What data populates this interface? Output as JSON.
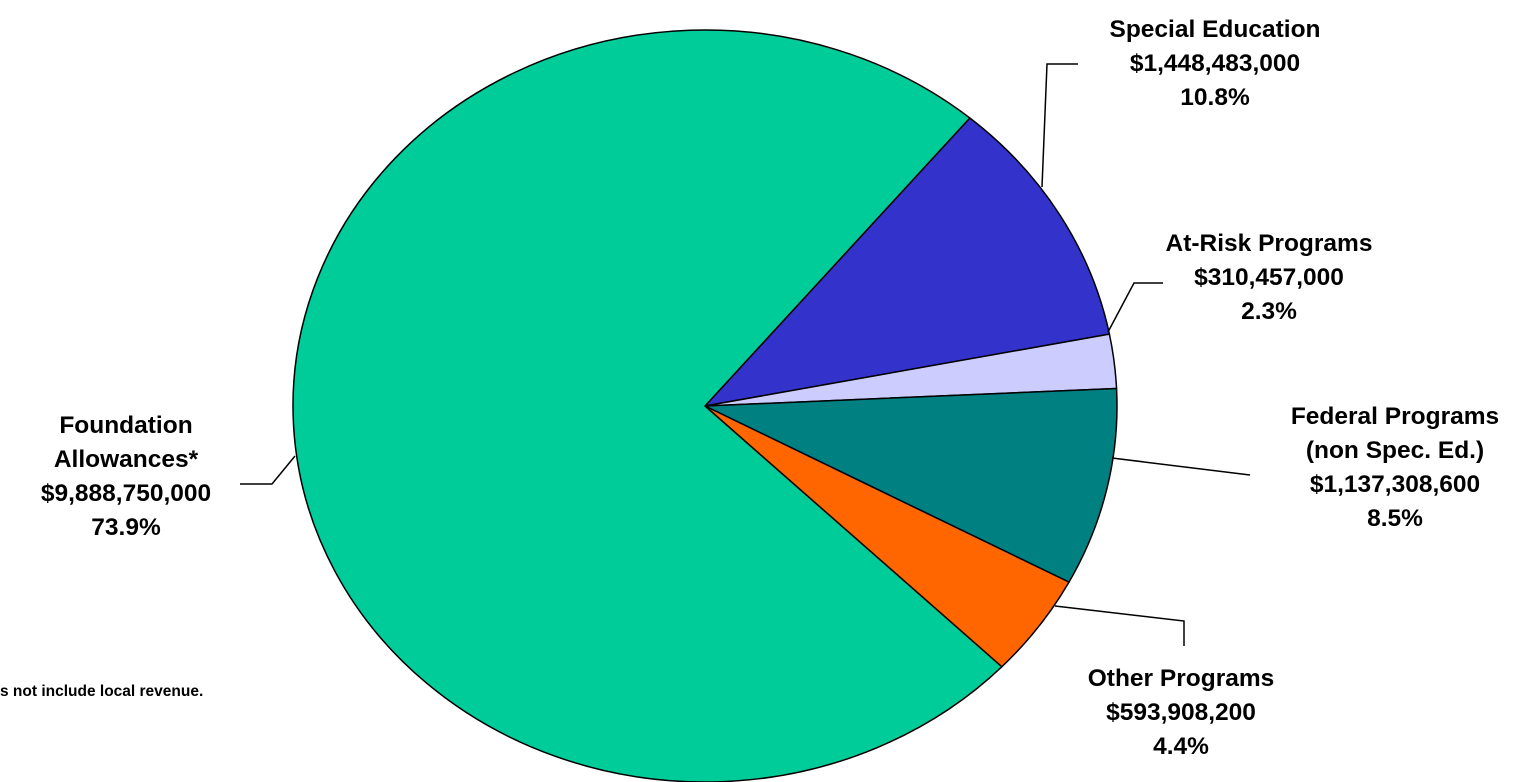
{
  "chart_data": {
    "type": "pie",
    "slices": [
      {
        "name": "Foundation Allowances*",
        "name_lines": [
          "Foundation",
          "Allowances*"
        ],
        "value": 9888750000,
        "value_label": "$9,888,750,000",
        "percent_label": "73.9%",
        "percent": 73.9,
        "color": "#00CC99"
      },
      {
        "name": "Special Education",
        "name_lines": [
          "Special Education"
        ],
        "value": 1448483000,
        "value_label": "$1,448,483,000",
        "percent_label": "10.8%",
        "percent": 10.8,
        "color": "#3333CC"
      },
      {
        "name": "At-Risk Programs",
        "name_lines": [
          "At-Risk Programs"
        ],
        "value": 310457000,
        "value_label": "$310,457,000",
        "percent_label": "2.3%",
        "percent": 2.3,
        "color": "#CCCCFF"
      },
      {
        "name": "Federal Programs (non Spec. Ed.)",
        "name_lines": [
          "Federal Programs",
          "(non Spec. Ed.)"
        ],
        "value": 1137308600,
        "value_label": "$1,137,308,600",
        "percent_label": "8.5%",
        "percent": 8.5,
        "color": "#008080"
      },
      {
        "name": "Other Programs",
        "name_lines": [
          "Other Programs"
        ],
        "value": 593908200,
        "value_label": "$593,908,200",
        "percent_label": "4.4%",
        "percent": 4.4,
        "color": "#FF6600"
      }
    ],
    "footnote": "s not include local revenue."
  }
}
